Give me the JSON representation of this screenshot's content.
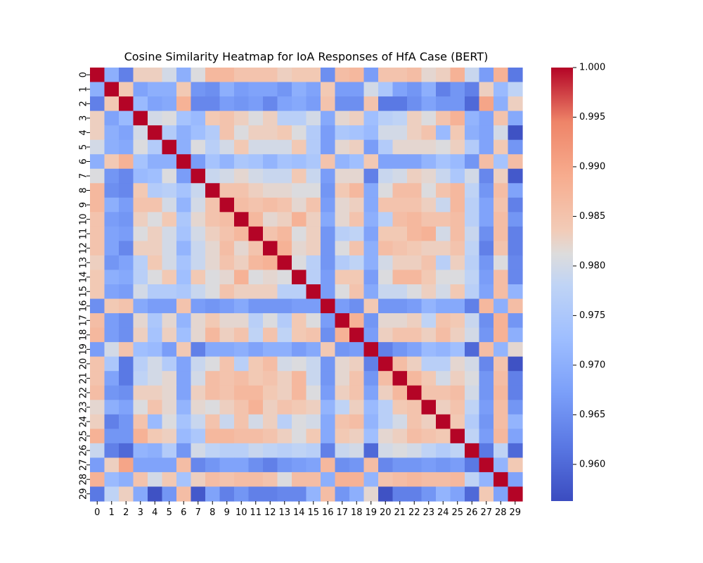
{
  "chart_data": {
    "type": "heatmap",
    "title": "Cosine Similarity Heatmap for IoA Responses of HfA Case (BERT)",
    "xlabel": "",
    "ylabel": "",
    "row_labels": [
      "0",
      "1",
      "2",
      "3",
      "4",
      "5",
      "6",
      "7",
      "8",
      "9",
      "10",
      "11",
      "12",
      "13",
      "14",
      "15",
      "16",
      "17",
      "18",
      "19",
      "20",
      "21",
      "22",
      "23",
      "24",
      "25",
      "26",
      "27",
      "28",
      "29"
    ],
    "col_labels": [
      "0",
      "1",
      "2",
      "3",
      "4",
      "5",
      "6",
      "7",
      "8",
      "9",
      "10",
      "11",
      "12",
      "13",
      "14",
      "15",
      "16",
      "17",
      "18",
      "19",
      "20",
      "21",
      "22",
      "23",
      "24",
      "25",
      "26",
      "27",
      "28",
      "29"
    ],
    "colormap": "coolwarm",
    "vmin": 0.9563,
    "vmax": 1.0,
    "colorbar_ticks": [
      0.96,
      0.965,
      0.97,
      0.975,
      0.98,
      0.985,
      0.99,
      0.995,
      1.0
    ],
    "colorbar_tick_labels": [
      "0.960",
      "0.965",
      "0.970",
      "0.975",
      "0.980",
      "0.985",
      "0.990",
      "0.995",
      "1.000"
    ],
    "values": [
      [
        1.0,
        0.97,
        0.963,
        0.983,
        0.983,
        0.98,
        0.97,
        0.981,
        0.987,
        0.987,
        0.985,
        0.985,
        0.985,
        0.983,
        0.984,
        0.984,
        0.965,
        0.986,
        0.987,
        0.967,
        0.985,
        0.985,
        0.986,
        0.982,
        0.983,
        0.988,
        0.979,
        0.967,
        0.988,
        0.962
      ],
      [
        0.97,
        1.0,
        0.984,
        0.968,
        0.97,
        0.97,
        0.984,
        0.966,
        0.965,
        0.97,
        0.967,
        0.968,
        0.968,
        0.966,
        0.97,
        0.968,
        0.984,
        0.967,
        0.967,
        0.98,
        0.975,
        0.968,
        0.966,
        0.97,
        0.963,
        0.966,
        0.963,
        0.983,
        0.972,
        0.978
      ],
      [
        0.963,
        0.984,
        1.0,
        0.972,
        0.968,
        0.969,
        0.988,
        0.964,
        0.964,
        0.967,
        0.966,
        0.967,
        0.964,
        0.968,
        0.969,
        0.967,
        0.985,
        0.965,
        0.965,
        0.985,
        0.962,
        0.962,
        0.965,
        0.968,
        0.966,
        0.966,
        0.96,
        0.99,
        0.97,
        0.983
      ],
      [
        0.983,
        0.968,
        0.972,
        1.0,
        0.98,
        0.981,
        0.974,
        0.972,
        0.984,
        0.985,
        0.983,
        0.981,
        0.983,
        0.977,
        0.977,
        0.98,
        0.969,
        0.982,
        0.983,
        0.973,
        0.977,
        0.978,
        0.983,
        0.981,
        0.985,
        0.988,
        0.971,
        0.968,
        0.985,
        0.969
      ],
      [
        0.983,
        0.97,
        0.968,
        0.98,
        1.0,
        0.976,
        0.97,
        0.973,
        0.976,
        0.985,
        0.981,
        0.983,
        0.983,
        0.984,
        0.981,
        0.976,
        0.967,
        0.975,
        0.974,
        0.972,
        0.98,
        0.98,
        0.983,
        0.985,
        0.972,
        0.984,
        0.97,
        0.968,
        0.98,
        0.957
      ],
      [
        0.98,
        0.97,
        0.969,
        0.981,
        0.976,
        1.0,
        0.97,
        0.981,
        0.977,
        0.98,
        0.984,
        0.98,
        0.98,
        0.98,
        0.984,
        0.976,
        0.967,
        0.982,
        0.983,
        0.967,
        0.976,
        0.982,
        0.982,
        0.982,
        0.981,
        0.983,
        0.976,
        0.968,
        0.984,
        0.966
      ],
      [
        0.97,
        0.984,
        0.988,
        0.974,
        0.97,
        0.97,
        1.0,
        0.967,
        0.974,
        0.971,
        0.975,
        0.974,
        0.971,
        0.974,
        0.973,
        0.975,
        0.985,
        0.971,
        0.973,
        0.984,
        0.968,
        0.968,
        0.968,
        0.971,
        0.974,
        0.972,
        0.966,
        0.986,
        0.974,
        0.986
      ],
      [
        0.981,
        0.966,
        0.964,
        0.972,
        0.973,
        0.981,
        0.967,
        1.0,
        0.979,
        0.98,
        0.982,
        0.98,
        0.979,
        0.979,
        0.984,
        0.979,
        0.967,
        0.982,
        0.982,
        0.963,
        0.979,
        0.98,
        0.983,
        0.982,
        0.979,
        0.975,
        0.98,
        0.964,
        0.983,
        0.958
      ],
      [
        0.987,
        0.965,
        0.964,
        0.984,
        0.976,
        0.977,
        0.974,
        0.979,
        1.0,
        0.985,
        0.985,
        0.983,
        0.982,
        0.982,
        0.981,
        0.981,
        0.966,
        0.984,
        0.987,
        0.969,
        0.981,
        0.986,
        0.986,
        0.981,
        0.985,
        0.987,
        0.978,
        0.966,
        0.986,
        0.968
      ],
      [
        0.987,
        0.97,
        0.967,
        0.985,
        0.985,
        0.98,
        0.971,
        0.98,
        0.985,
        1.0,
        0.986,
        0.985,
        0.986,
        0.985,
        0.982,
        0.985,
        0.967,
        0.982,
        0.983,
        0.969,
        0.985,
        0.985,
        0.985,
        0.983,
        0.979,
        0.987,
        0.977,
        0.968,
        0.985,
        0.963
      ],
      [
        0.985,
        0.967,
        0.966,
        0.983,
        0.981,
        0.984,
        0.975,
        0.982,
        0.985,
        0.986,
        1.0,
        0.987,
        0.982,
        0.983,
        0.988,
        0.983,
        0.969,
        0.982,
        0.985,
        0.97,
        0.977,
        0.986,
        0.987,
        0.985,
        0.985,
        0.986,
        0.977,
        0.968,
        0.986,
        0.966
      ],
      [
        0.985,
        0.968,
        0.967,
        0.981,
        0.983,
        0.98,
        0.974,
        0.98,
        0.983,
        0.985,
        0.987,
        1.0,
        0.985,
        0.987,
        0.981,
        0.983,
        0.966,
        0.977,
        0.978,
        0.968,
        0.984,
        0.984,
        0.987,
        0.988,
        0.98,
        0.986,
        0.979,
        0.965,
        0.986,
        0.963
      ],
      [
        0.985,
        0.968,
        0.964,
        0.983,
        0.983,
        0.98,
        0.971,
        0.979,
        0.982,
        0.986,
        0.982,
        0.985,
        1.0,
        0.988,
        0.982,
        0.983,
        0.966,
        0.981,
        0.985,
        0.97,
        0.986,
        0.985,
        0.984,
        0.983,
        0.983,
        0.985,
        0.978,
        0.963,
        0.985,
        0.963
      ],
      [
        0.983,
        0.966,
        0.968,
        0.977,
        0.984,
        0.98,
        0.974,
        0.979,
        0.982,
        0.985,
        0.983,
        0.987,
        0.988,
        1.0,
        0.981,
        0.977,
        0.966,
        0.976,
        0.978,
        0.97,
        0.98,
        0.983,
        0.983,
        0.985,
        0.977,
        0.983,
        0.977,
        0.966,
        0.981,
        0.964
      ],
      [
        0.984,
        0.97,
        0.969,
        0.977,
        0.981,
        0.984,
        0.973,
        0.984,
        0.981,
        0.982,
        0.988,
        0.981,
        0.982,
        0.981,
        1.0,
        0.977,
        0.967,
        0.984,
        0.984,
        0.967,
        0.981,
        0.987,
        0.987,
        0.984,
        0.981,
        0.981,
        0.978,
        0.967,
        0.986,
        0.964
      ],
      [
        0.984,
        0.968,
        0.967,
        0.98,
        0.976,
        0.976,
        0.975,
        0.979,
        0.981,
        0.985,
        0.983,
        0.983,
        0.983,
        0.977,
        0.977,
        1.0,
        0.967,
        0.981,
        0.985,
        0.969,
        0.979,
        0.979,
        0.981,
        0.983,
        0.98,
        0.984,
        0.977,
        0.968,
        0.986,
        0.971
      ],
      [
        0.965,
        0.984,
        0.985,
        0.969,
        0.967,
        0.967,
        0.985,
        0.967,
        0.966,
        0.967,
        0.969,
        0.966,
        0.966,
        0.966,
        0.967,
        0.967,
        1.0,
        0.967,
        0.965,
        0.984,
        0.966,
        0.966,
        0.967,
        0.971,
        0.969,
        0.969,
        0.963,
        0.987,
        0.97,
        0.986
      ],
      [
        0.986,
        0.967,
        0.965,
        0.982,
        0.975,
        0.982,
        0.971,
        0.982,
        0.984,
        0.982,
        0.982,
        0.977,
        0.981,
        0.976,
        0.984,
        0.981,
        0.967,
        1.0,
        0.988,
        0.966,
        0.982,
        0.982,
        0.983,
        0.978,
        0.985,
        0.984,
        0.979,
        0.965,
        0.988,
        0.966
      ],
      [
        0.987,
        0.967,
        0.965,
        0.983,
        0.974,
        0.983,
        0.973,
        0.982,
        0.987,
        0.983,
        0.985,
        0.978,
        0.985,
        0.978,
        0.984,
        0.985,
        0.965,
        0.988,
        1.0,
        0.967,
        0.983,
        0.985,
        0.985,
        0.983,
        0.986,
        0.983,
        0.98,
        0.966,
        0.988,
        0.97
      ],
      [
        0.967,
        0.98,
        0.985,
        0.973,
        0.972,
        0.967,
        0.984,
        0.963,
        0.969,
        0.969,
        0.97,
        0.968,
        0.97,
        0.97,
        0.967,
        0.969,
        0.984,
        0.966,
        0.967,
        1.0,
        0.963,
        0.966,
        0.968,
        0.972,
        0.971,
        0.973,
        0.96,
        0.986,
        0.971,
        0.982
      ],
      [
        0.985,
        0.975,
        0.962,
        0.977,
        0.98,
        0.976,
        0.968,
        0.979,
        0.981,
        0.985,
        0.977,
        0.984,
        0.986,
        0.98,
        0.981,
        0.979,
        0.966,
        0.982,
        0.983,
        0.963,
        1.0,
        0.986,
        0.983,
        0.977,
        0.977,
        0.982,
        0.98,
        0.964,
        0.985,
        0.957
      ],
      [
        0.985,
        0.968,
        0.962,
        0.978,
        0.98,
        0.982,
        0.968,
        0.98,
        0.986,
        0.985,
        0.986,
        0.984,
        0.985,
        0.983,
        0.987,
        0.979,
        0.966,
        0.982,
        0.985,
        0.966,
        0.986,
        1.0,
        0.987,
        0.984,
        0.98,
        0.983,
        0.981,
        0.966,
        0.986,
        0.963
      ],
      [
        0.986,
        0.966,
        0.965,
        0.983,
        0.983,
        0.982,
        0.968,
        0.983,
        0.986,
        0.985,
        0.987,
        0.987,
        0.984,
        0.983,
        0.987,
        0.981,
        0.967,
        0.983,
        0.985,
        0.968,
        0.983,
        0.987,
        1.0,
        0.985,
        0.985,
        0.986,
        0.98,
        0.966,
        0.987,
        0.963
      ],
      [
        0.982,
        0.97,
        0.968,
        0.981,
        0.985,
        0.982,
        0.971,
        0.982,
        0.981,
        0.983,
        0.985,
        0.988,
        0.983,
        0.985,
        0.984,
        0.983,
        0.971,
        0.978,
        0.983,
        0.972,
        0.977,
        0.984,
        0.985,
        1.0,
        0.983,
        0.985,
        0.978,
        0.967,
        0.986,
        0.966
      ],
      [
        0.983,
        0.963,
        0.966,
        0.985,
        0.972,
        0.981,
        0.974,
        0.979,
        0.985,
        0.979,
        0.985,
        0.98,
        0.983,
        0.977,
        0.981,
        0.98,
        0.969,
        0.985,
        0.986,
        0.971,
        0.977,
        0.98,
        0.985,
        0.983,
        1.0,
        0.984,
        0.976,
        0.966,
        0.986,
        0.971
      ],
      [
        0.988,
        0.966,
        0.966,
        0.988,
        0.984,
        0.983,
        0.972,
        0.975,
        0.987,
        0.987,
        0.986,
        0.986,
        0.985,
        0.983,
        0.981,
        0.984,
        0.969,
        0.984,
        0.983,
        0.973,
        0.982,
        0.983,
        0.986,
        0.985,
        0.984,
        1.0,
        0.978,
        0.967,
        0.987,
        0.968
      ],
      [
        0.979,
        0.963,
        0.96,
        0.971,
        0.97,
        0.976,
        0.966,
        0.98,
        0.978,
        0.977,
        0.977,
        0.979,
        0.978,
        0.977,
        0.978,
        0.977,
        0.963,
        0.979,
        0.98,
        0.96,
        0.98,
        0.981,
        0.98,
        0.978,
        0.976,
        0.978,
        1.0,
        0.962,
        0.978,
        0.96
      ],
      [
        0.967,
        0.983,
        0.99,
        0.968,
        0.968,
        0.968,
        0.986,
        0.964,
        0.966,
        0.968,
        0.968,
        0.965,
        0.963,
        0.966,
        0.967,
        0.968,
        0.987,
        0.965,
        0.966,
        0.986,
        0.964,
        0.966,
        0.966,
        0.967,
        0.966,
        0.967,
        0.962,
        1.0,
        0.971,
        0.984
      ],
      [
        0.988,
        0.972,
        0.97,
        0.985,
        0.98,
        0.984,
        0.974,
        0.983,
        0.986,
        0.985,
        0.986,
        0.986,
        0.985,
        0.981,
        0.986,
        0.986,
        0.97,
        0.988,
        0.988,
        0.971,
        0.985,
        0.986,
        0.987,
        0.986,
        0.986,
        0.987,
        0.978,
        0.971,
        1.0,
        0.968
      ],
      [
        0.962,
        0.978,
        0.983,
        0.969,
        0.957,
        0.966,
        0.986,
        0.958,
        0.968,
        0.963,
        0.966,
        0.963,
        0.963,
        0.964,
        0.964,
        0.971,
        0.986,
        0.966,
        0.97,
        0.982,
        0.957,
        0.963,
        0.963,
        0.966,
        0.971,
        0.968,
        0.96,
        0.984,
        0.968,
        1.0
      ]
    ]
  }
}
